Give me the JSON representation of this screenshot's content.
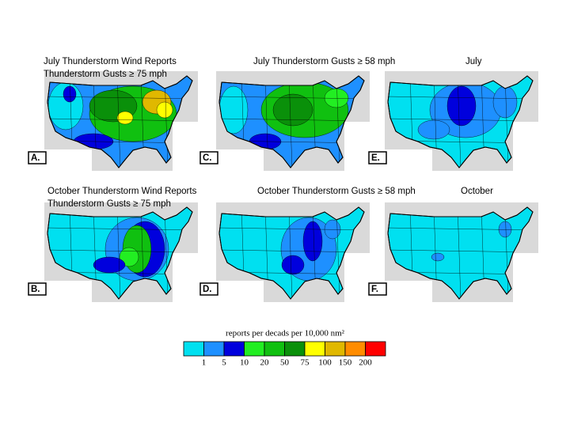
{
  "panels": [
    {
      "letter": "A.",
      "title": [
        "July Thunderstorm Wind Reports",
        "Thunderstorm  Gusts ≥ 75 mph"
      ]
    },
    {
      "letter": "C.",
      "title": [
        "July Thunderstorm  Gusts ≥ 58 mph"
      ]
    },
    {
      "letter": "E.",
      "title": [
        "July"
      ]
    },
    {
      "letter": "B.",
      "title": [
        "October Thunderstorm Wind Reports",
        "Thunderstorm  Gusts ≥ 75 mph"
      ]
    },
    {
      "letter": "D.",
      "title": [
        "October Thunderstorm  Gusts ≥ 58 mph"
      ]
    },
    {
      "letter": "F.",
      "title": [
        "October"
      ]
    }
  ],
  "legend": {
    "title": "reports per decads per 10,000 nm²",
    "colors": [
      "#00e0f0",
      "#1e90ff",
      "#0000dd",
      "#22ee22",
      "#10c010",
      "#0a900a",
      "#ffff00",
      "#e0b800",
      "#ff8c00",
      "#ff0000"
    ],
    "labels": [
      "1",
      "5",
      "10",
      "20",
      "50",
      "75",
      "100",
      "150",
      "200"
    ]
  }
}
